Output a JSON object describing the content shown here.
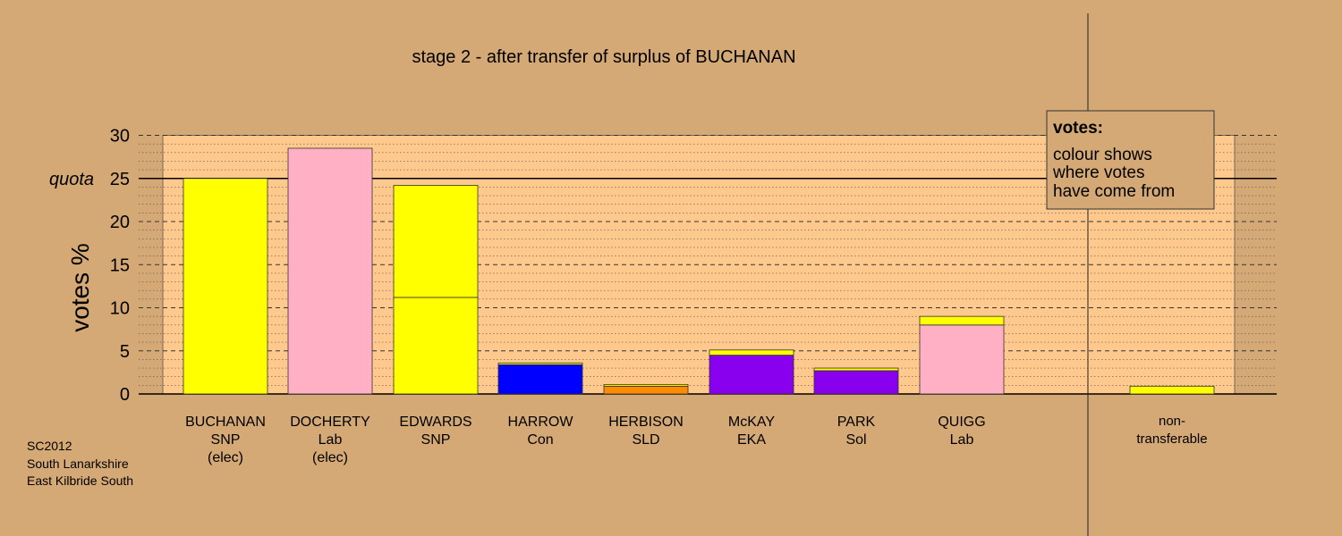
{
  "footer": {
    "line1": "SC2012",
    "line2": "South Lanarkshire",
    "line3": "East Kilbride South"
  },
  "chart_data": {
    "type": "bar",
    "stacked": true,
    "title": "stage 2 - after transfer of surplus of BUCHANAN",
    "ylabel": "votes %",
    "ylim": [
      0,
      30
    ],
    "yticks": [
      0,
      5,
      10,
      15,
      20,
      25,
      30
    ],
    "quota": 25,
    "quota_label": "quota",
    "grid": true,
    "colors": {
      "background": "#d4a976",
      "plot_area": "#ffc98e",
      "snp": "#ffff00",
      "lab": "#ffb0c4",
      "con": "#0000ff",
      "sld": "#ff8c00",
      "eka": "#8800ee",
      "sol": "#8800ee"
    },
    "legend": {
      "title": "votes:",
      "lines": [
        "colour shows",
        "where votes",
        "have come from"
      ],
      "placement": "top-right"
    },
    "categories": [
      {
        "name": "BUCHANAN",
        "party": "SNP",
        "status": "(elec)",
        "segments": [
          {
            "source": "SNP",
            "value": 25.0,
            "color": "#ffff00"
          }
        ]
      },
      {
        "name": "DOCHERTY",
        "party": "Lab",
        "status": "(elec)",
        "segments": [
          {
            "source": "Lab",
            "value": 28.5,
            "color": "#ffb0c4"
          }
        ]
      },
      {
        "name": "EDWARDS",
        "party": "SNP",
        "status": "",
        "segments": [
          {
            "source": "SNP",
            "value": 11.2,
            "color": "#ffff00"
          },
          {
            "source": "SNP",
            "value": 13.0,
            "color": "#ffff00"
          }
        ]
      },
      {
        "name": "HARROW",
        "party": "Con",
        "status": "",
        "segments": [
          {
            "source": "Con",
            "value": 3.4,
            "color": "#0000ff"
          },
          {
            "source": "SNP",
            "value": 0.2,
            "color": "#ffff00"
          }
        ]
      },
      {
        "name": "HERBISON",
        "party": "SLD",
        "status": "",
        "segments": [
          {
            "source": "SLD",
            "value": 0.9,
            "color": "#ff8c00"
          },
          {
            "source": "SNP",
            "value": 0.2,
            "color": "#ffff00"
          }
        ]
      },
      {
        "name": "McKAY",
        "party": "EKA",
        "status": "",
        "segments": [
          {
            "source": "EKA",
            "value": 4.5,
            "color": "#8800ee"
          },
          {
            "source": "SNP",
            "value": 0.6,
            "color": "#ffff00"
          }
        ]
      },
      {
        "name": "PARK",
        "party": "Sol",
        "status": "",
        "segments": [
          {
            "source": "Sol",
            "value": 2.7,
            "color": "#8800ee"
          },
          {
            "source": "SNP",
            "value": 0.3,
            "color": "#ffff00"
          }
        ]
      },
      {
        "name": "QUIGG",
        "party": "Lab",
        "status": "",
        "segments": [
          {
            "source": "Lab",
            "value": 8.0,
            "color": "#ffb0c4"
          },
          {
            "source": "SNP",
            "value": 1.0,
            "color": "#ffff00"
          }
        ]
      }
    ],
    "non_transferable": {
      "label_line1": "non-",
      "label_line2": "transferable",
      "segments": [
        {
          "source": "SNP",
          "value": 0.9,
          "color": "#ffff00"
        }
      ]
    }
  }
}
